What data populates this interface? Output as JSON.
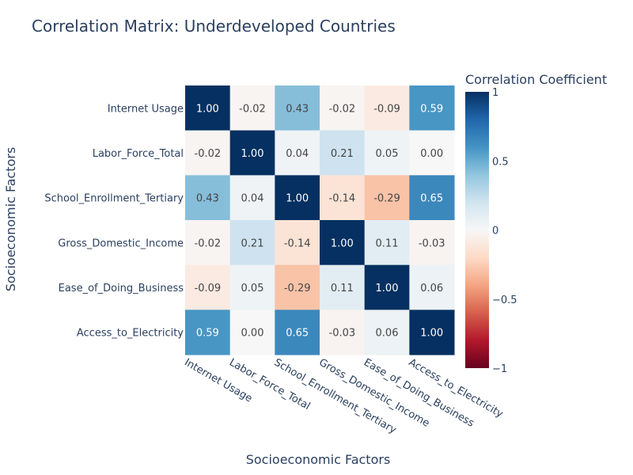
{
  "chart_data": {
    "type": "heatmap",
    "title": "Correlation Matrix: Underdeveloped Countries",
    "xlabel": "Socioeconomic Factors",
    "ylabel": "Socioeconomic Factors",
    "x_categories": [
      "Internet Usage",
      "Labor_Force_Total",
      "School_Enrollment_Tertiary",
      "Gross_Domestic_Income",
      "Ease_of_Doing_Business",
      "Access_to_Electricity"
    ],
    "y_categories": [
      "Internet Usage",
      "Labor_Force_Total",
      "School_Enrollment_Tertiary",
      "Gross_Domestic_Income",
      "Ease_of_Doing_Business",
      "Access_to_Electricity"
    ],
    "values": [
      [
        1.0,
        -0.02,
        0.43,
        -0.02,
        -0.09,
        0.59
      ],
      [
        -0.02,
        1.0,
        0.04,
        0.21,
        0.05,
        0.0
      ],
      [
        0.43,
        0.04,
        1.0,
        -0.14,
        -0.29,
        0.65
      ],
      [
        -0.02,
        0.21,
        -0.14,
        1.0,
        0.11,
        -0.03
      ],
      [
        -0.09,
        0.05,
        -0.29,
        0.11,
        1.0,
        0.06
      ],
      [
        0.59,
        0.0,
        0.65,
        -0.03,
        0.06,
        1.0
      ]
    ],
    "value_format": "2 decimals",
    "colorscale": "RdBu",
    "zrange": [
      -1,
      1
    ],
    "colorbar": {
      "title": "Correlation Coefficient",
      "tick_values": [
        1,
        0.5,
        0,
        -0.5,
        -1
      ],
      "tick_labels": [
        "1",
        "0.5",
        "0",
        "−0.5",
        "−1"
      ]
    },
    "xtick_angle": 30
  }
}
